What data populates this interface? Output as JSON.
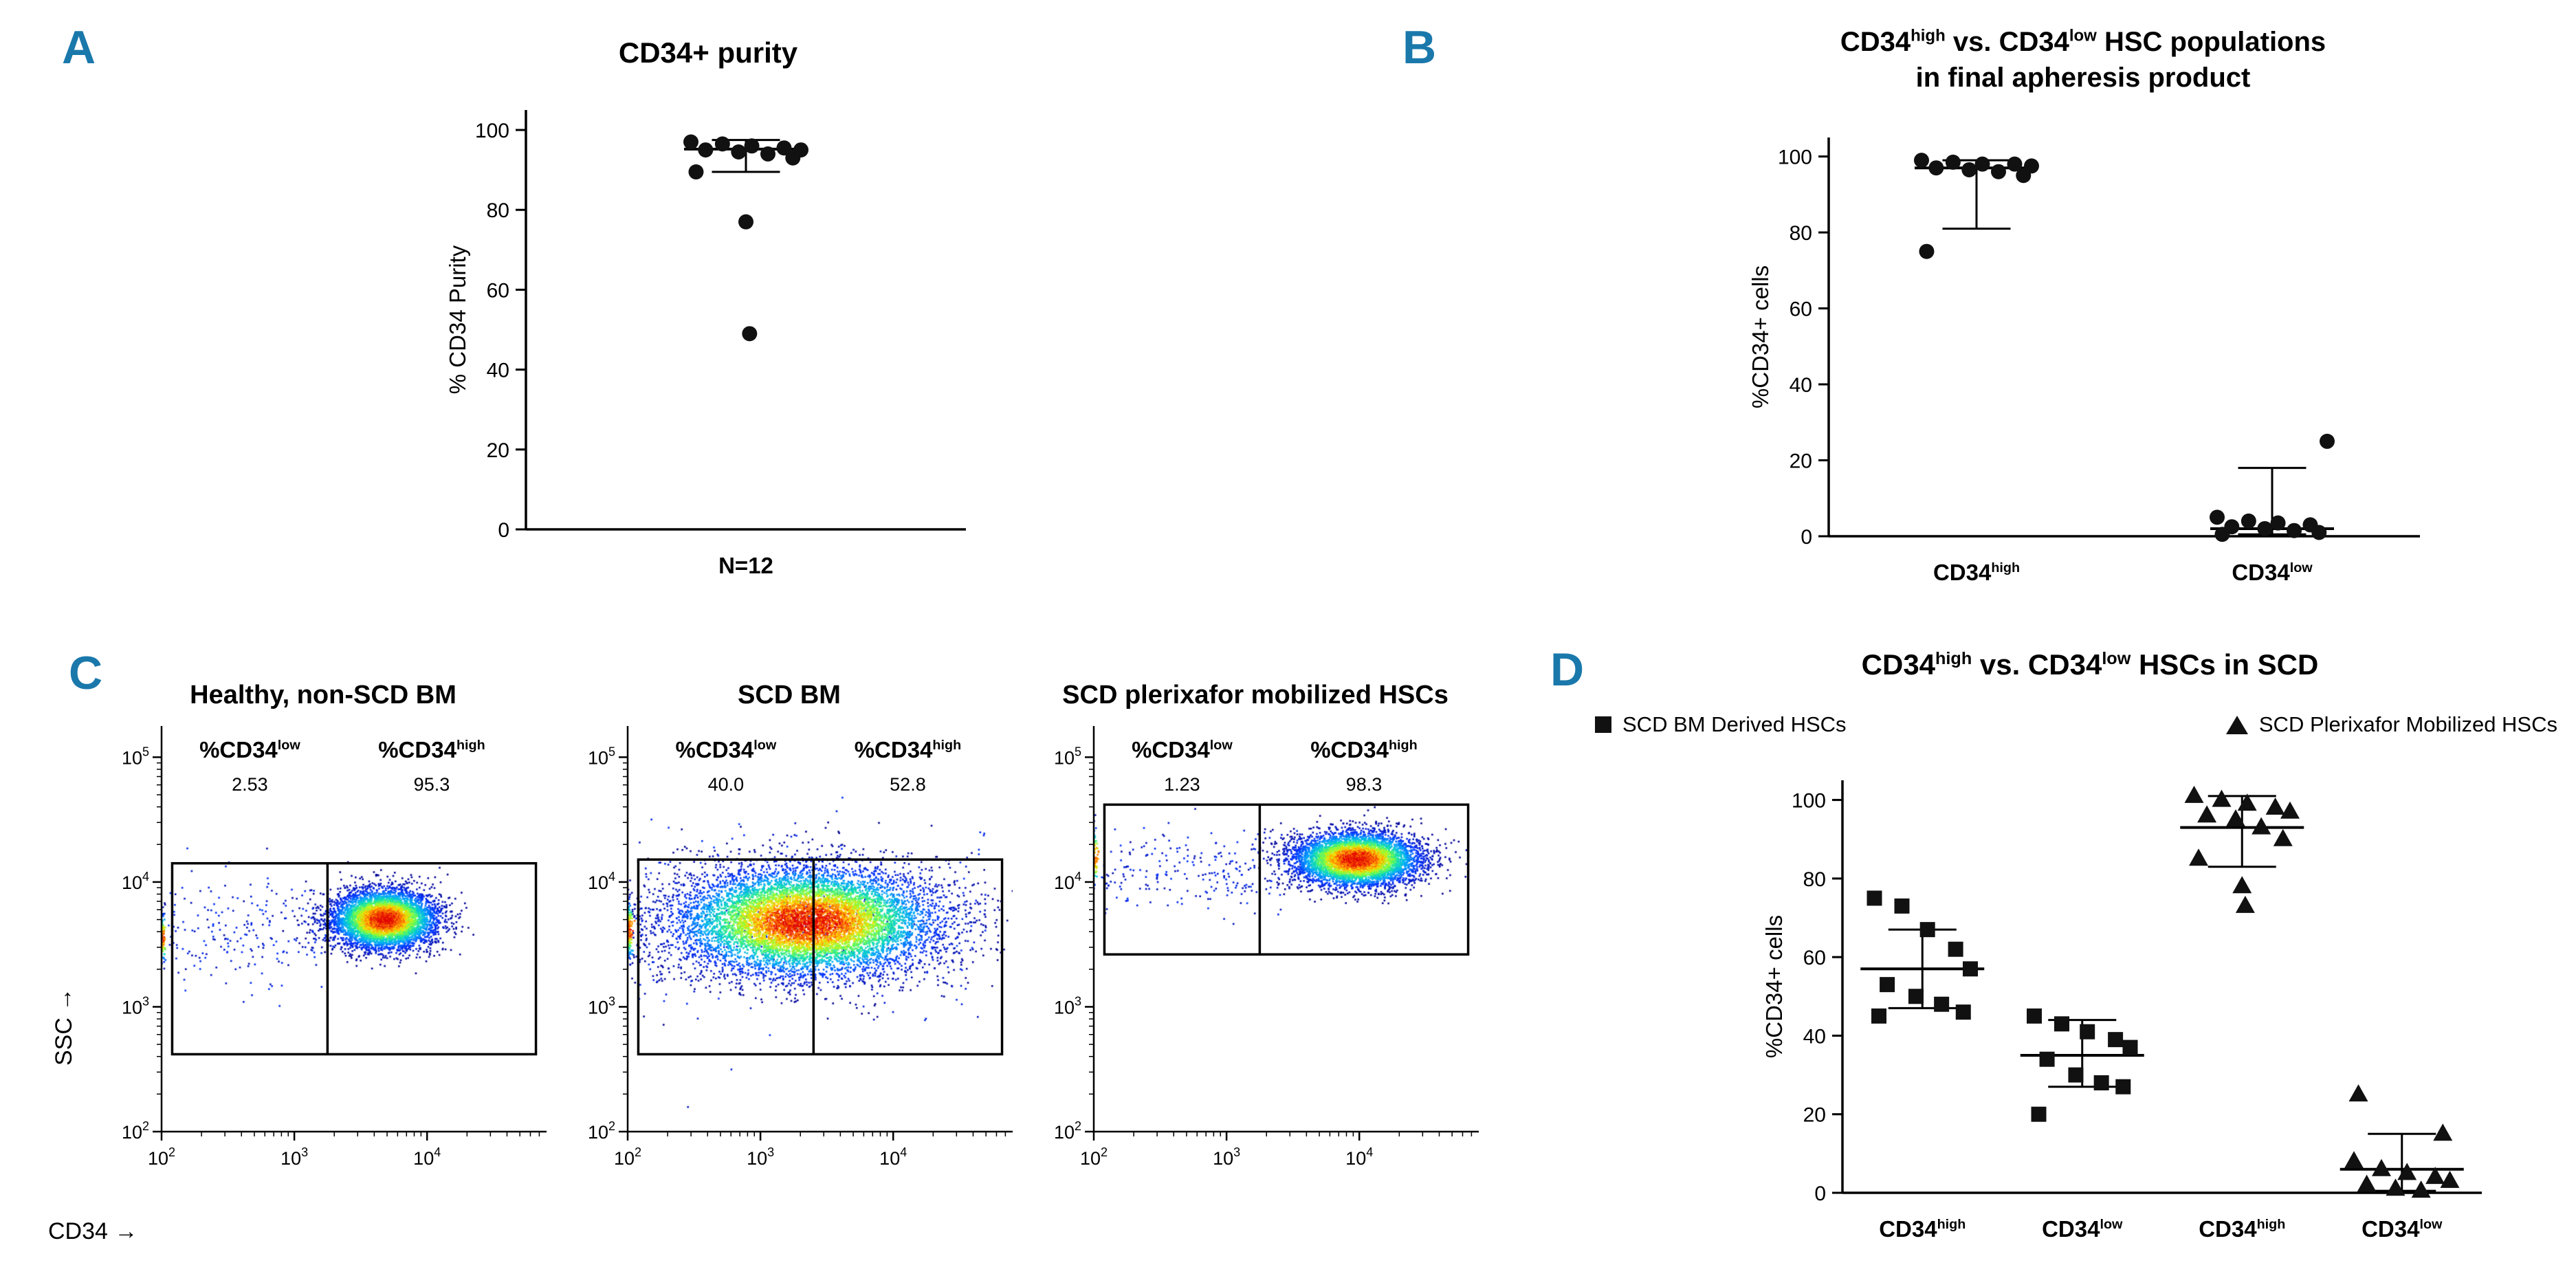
{
  "figure": {
    "accent_color": "#1a78ab",
    "background": "#ffffff"
  },
  "chart_data": [
    {
      "panel_label": "A",
      "type": "scatter",
      "title": "CD34+ purity",
      "ylabel": "% CD34 Purity",
      "ylim": [
        0,
        100
      ],
      "yticks": [
        0,
        20,
        40,
        60,
        80,
        100
      ],
      "marker_color": "#111111",
      "groups": [
        {
          "label_segments": [
            {
              "t": "N=12"
            }
          ],
          "marker": "circle",
          "values": [
            97,
            96.5,
            96,
            95.5,
            95,
            95,
            94.5,
            94,
            93,
            89.5,
            77,
            49
          ],
          "median": 95.2,
          "upper": 97.5,
          "lower": 89.5
        }
      ]
    },
    {
      "panel_label": "B",
      "type": "scatter",
      "title_lines": [
        [
          {
            "t": "CD34"
          },
          {
            "t": "high",
            "sup": true
          },
          {
            "t": " vs. CD34"
          },
          {
            "t": "low",
            "sup": true
          },
          {
            "t": " HSC populations"
          }
        ],
        [
          {
            "t": "in final apheresis product"
          }
        ]
      ],
      "ylabel": "%CD34+ cells",
      "ylim": [
        0,
        100
      ],
      "yticks": [
        0,
        20,
        40,
        60,
        80,
        100
      ],
      "marker_color": "#111111",
      "groups": [
        {
          "label_segments": [
            {
              "t": "CD34"
            },
            {
              "t": "high",
              "sup": true
            }
          ],
          "marker": "circle",
          "values": [
            99,
            98.5,
            98,
            98,
            97.5,
            97,
            96.5,
            96,
            95,
            75
          ],
          "median": 97,
          "upper": 99,
          "lower": 81
        },
        {
          "label_segments": [
            {
              "t": "CD34"
            },
            {
              "t": "low",
              "sup": true
            }
          ],
          "marker": "circle",
          "values": [
            5,
            4,
            3.5,
            3,
            25,
            2.5,
            2,
            1.5,
            1,
            0.5
          ],
          "median": 2,
          "upper": 18,
          "lower": 0.5
        }
      ]
    },
    {
      "panel_label": "C",
      "type": "flow-cytometry",
      "xlabel": "CD34 →",
      "ylabel": "SSC →",
      "xlog_range": [
        2,
        4.9
      ],
      "ylog_range": [
        2,
        5.25
      ],
      "xticks_exp": [
        2,
        3,
        4
      ],
      "yticks_exp": [
        2,
        3,
        4,
        5
      ],
      "colormap": [
        "#00008f",
        "#0030ff",
        "#00a4ff",
        "#10e0b0",
        "#80ff40",
        "#ffe000",
        "#ff7000",
        "#e00000"
      ],
      "plots": [
        {
          "title": "Healthy, non-SCD BM",
          "gates": {
            "rect": [
              2.08,
              4.82,
              2.62,
              4.15
            ],
            "divider": 3.25,
            "left": {
              "label_segments": [
                {
                  "t": "%CD34"
                },
                {
                  "t": "low",
                  "sup": true
                }
              ],
              "value": "2.53"
            },
            "right": {
              "label_segments": [
                {
                  "t": "%CD34"
                },
                {
                  "t": "high",
                  "sup": true
                }
              ],
              "value": "95.3"
            }
          },
          "population": {
            "cx": 3.68,
            "cy": 3.7,
            "sx": 0.2,
            "sy": 0.12,
            "n": 5200
          },
          "scatter": {
            "x0": 2.05,
            "x1": 3.3,
            "cy": 3.6,
            "sy": 0.22,
            "n": 230
          },
          "edge": {
            "cy": 3.55,
            "sy": 0.1,
            "n": 90
          },
          "seed": 11
        },
        {
          "title": "SCD BM",
          "gates": {
            "rect": [
              2.08,
              4.82,
              2.62,
              4.18
            ],
            "divider": 3.4,
            "left": {
              "label_segments": [
                {
                  "t": "%CD34"
                },
                {
                  "t": "low",
                  "sup": true
                }
              ],
              "value": "40.0"
            },
            "right": {
              "label_segments": [
                {
                  "t": "%CD34"
                },
                {
                  "t": "high",
                  "sup": true
                }
              ],
              "value": "52.8"
            }
          },
          "population": {
            "cx": 3.35,
            "cy": 3.68,
            "sx": 0.5,
            "sy": 0.22,
            "n": 9000
          },
          "scatter": {
            "x0": 2.05,
            "x1": 4.7,
            "cy": 3.7,
            "sy": 0.35,
            "n": 500
          },
          "edge": {
            "cy": 3.62,
            "sy": 0.12,
            "n": 160
          },
          "seed": 22
        },
        {
          "title": "SCD plerixafor mobilized HSCs",
          "gates": {
            "rect": [
              2.08,
              4.82,
              3.42,
              4.62
            ],
            "divider": 3.25,
            "left": {
              "label_segments": [
                {
                  "t": "%CD34"
                },
                {
                  "t": "low",
                  "sup": true
                }
              ],
              "value": "1.23"
            },
            "right": {
              "label_segments": [
                {
                  "t": "%CD34"
                },
                {
                  "t": "high",
                  "sup": true
                }
              ],
              "value": "98.3"
            }
          },
          "population": {
            "cx": 3.98,
            "cy": 4.18,
            "sx": 0.24,
            "sy": 0.11,
            "n": 5200
          },
          "scatter": {
            "x0": 2.05,
            "x1": 3.6,
            "cy": 4.1,
            "sy": 0.18,
            "n": 260
          },
          "edge": {
            "cy": 4.2,
            "sy": 0.12,
            "n": 70
          },
          "seed": 33
        }
      ]
    },
    {
      "panel_label": "D",
      "type": "scatter",
      "title_segments": [
        {
          "t": "CD34"
        },
        {
          "t": "high",
          "sup": true
        },
        {
          "t": " vs. CD34"
        },
        {
          "t": "low",
          "sup": true
        },
        {
          "t": " HSCs in SCD"
        }
      ],
      "ylabel": "%CD34+ cells",
      "ylim": [
        0,
        100
      ],
      "yticks": [
        0,
        20,
        40,
        60,
        80,
        100
      ],
      "marker_color": "#111111",
      "legend": [
        {
          "marker": "square",
          "label": "SCD BM Derived HSCs"
        },
        {
          "marker": "triangle",
          "label": "SCD Plerixafor Mobilized HSCs"
        }
      ],
      "groups": [
        {
          "label_segments": [
            {
              "t": "CD34"
            },
            {
              "t": "high",
              "sup": true
            }
          ],
          "marker": "square",
          "values": [
            75,
            73,
            67,
            62,
            57,
            53,
            50,
            48,
            46,
            45
          ],
          "median": 57,
          "upper": 67,
          "lower": 47
        },
        {
          "label_segments": [
            {
              "t": "CD34"
            },
            {
              "t": "low",
              "sup": true
            }
          ],
          "marker": "square",
          "values": [
            45,
            43,
            41,
            39,
            37,
            34,
            30,
            28,
            27,
            20
          ],
          "median": 35,
          "upper": 44,
          "lower": 27
        },
        {
          "label_segments": [
            {
              "t": "CD34"
            },
            {
              "t": "high",
              "sup": true
            }
          ],
          "marker": "triangle",
          "values": [
            101,
            100,
            99,
            98,
            97,
            96,
            95,
            93,
            90,
            85,
            78,
            73
          ],
          "median": 93,
          "upper": 101,
          "lower": 83
        },
        {
          "label_segments": [
            {
              "t": "CD34"
            },
            {
              "t": "low",
              "sup": true
            }
          ],
          "marker": "triangle",
          "values": [
            8,
            6,
            5,
            4,
            3,
            2,
            1,
            0.5,
            15,
            25
          ],
          "median": 6,
          "upper": 15,
          "lower": 0.5
        }
      ]
    }
  ]
}
